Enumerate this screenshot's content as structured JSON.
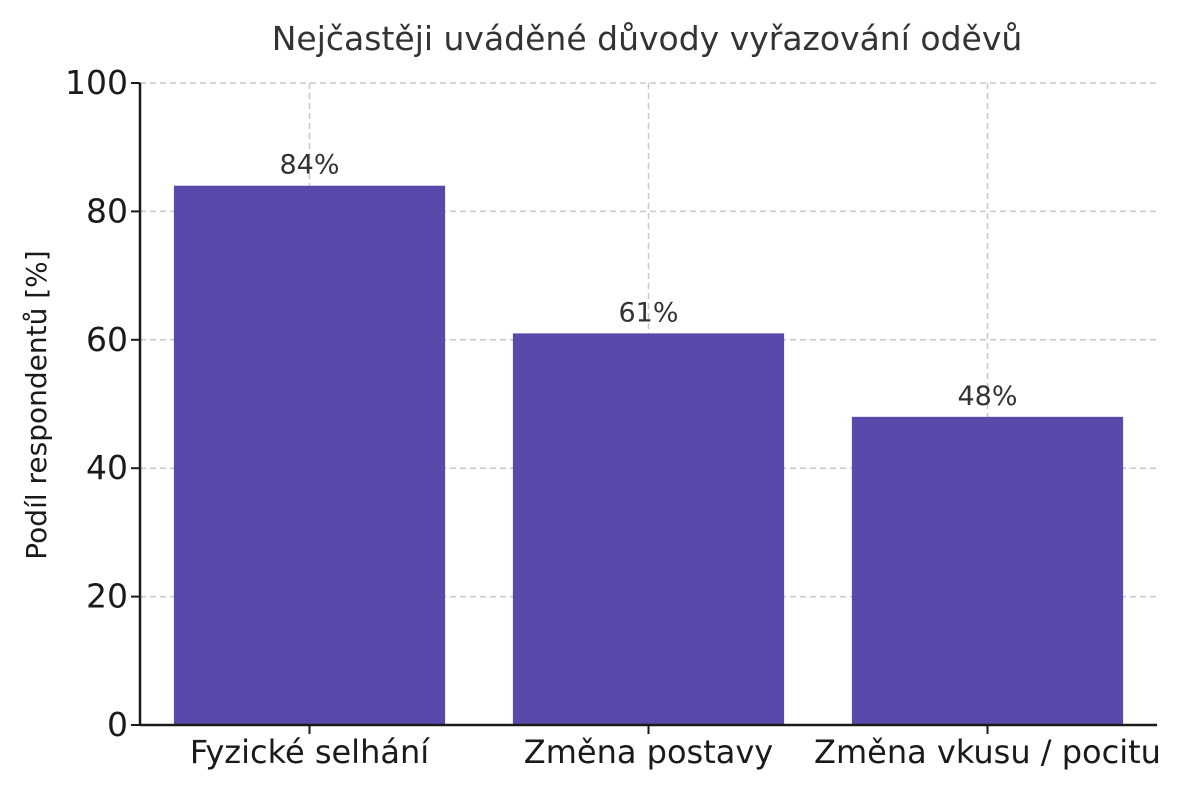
{
  "chart_data": {
    "type": "bar",
    "title": "Nejčastěji uváděné důvody vyřazování oděvů",
    "xlabel": "",
    "ylabel": "Podíl respondentů [%]",
    "categories": [
      "Fyzické selhání",
      "Změna postavy",
      "Změna vkusu / pocitu"
    ],
    "values": [
      84,
      61,
      48
    ],
    "value_labels": [
      "84%",
      "61%",
      "48%"
    ],
    "ylim": [
      0,
      100
    ],
    "yticks": [
      0,
      20,
      40,
      60,
      80,
      100
    ],
    "ytick_labels": [
      "0",
      "20",
      "40",
      "60",
      "80",
      "100"
    ],
    "grid": true,
    "legend": "none",
    "colors": {
      "bar": "#5849aa",
      "grid": "#c8c8c8",
      "axis": "#1a1a1a",
      "text": "#333333"
    }
  }
}
